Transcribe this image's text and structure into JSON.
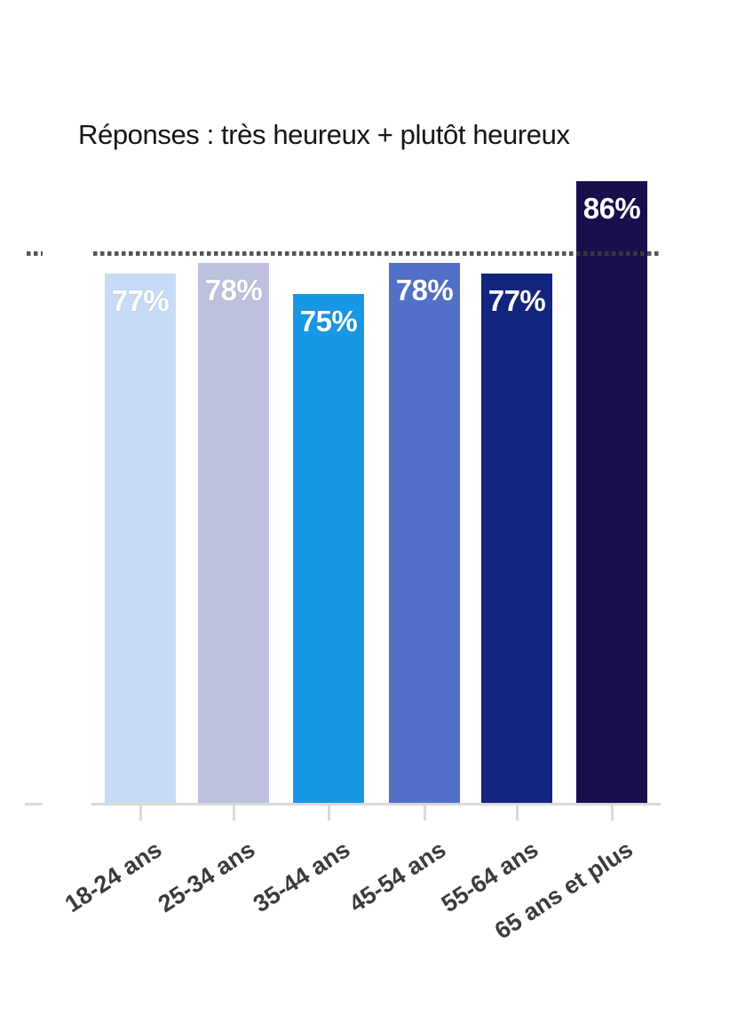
{
  "page": {
    "background": "#FFFFFF"
  },
  "chart_data": {
    "type": "bar",
    "title": "Réponses : très heureux + plutôt heureux",
    "categories": [
      "18-24 ans",
      "25-34 ans",
      "35-44 ans",
      "45-54 ans",
      "55-64 ans",
      "65 ans et plus"
    ],
    "values": [
      77,
      78,
      75,
      78,
      77,
      86
    ],
    "value_labels": [
      "77%",
      "78%",
      "75%",
      "78%",
      "77%",
      "86%"
    ],
    "series": [
      {
        "name": "très heureux + plutôt heureux",
        "values": [
          77,
          78,
          75,
          78,
          77,
          86
        ]
      }
    ],
    "bar_colors": [
      "#C7DCF4",
      "#BDC1DE",
      "#1897E4",
      "#5270C7",
      "#13267F",
      "#190F4D"
    ],
    "value_label_color": "#FFFFFF",
    "reference_line": {
      "value": 79,
      "color": "#3D3D3D",
      "style": "dotted"
    },
    "axis": {
      "baseline_color": "#D9D9D9",
      "tick_color": "#D9D9D9",
      "label_color": "#3B3B3B",
      "label_rotation_deg": -33
    },
    "ylim": [
      25,
      88
    ],
    "xlabel": "",
    "ylabel": "",
    "grid": false,
    "legend": "none"
  }
}
